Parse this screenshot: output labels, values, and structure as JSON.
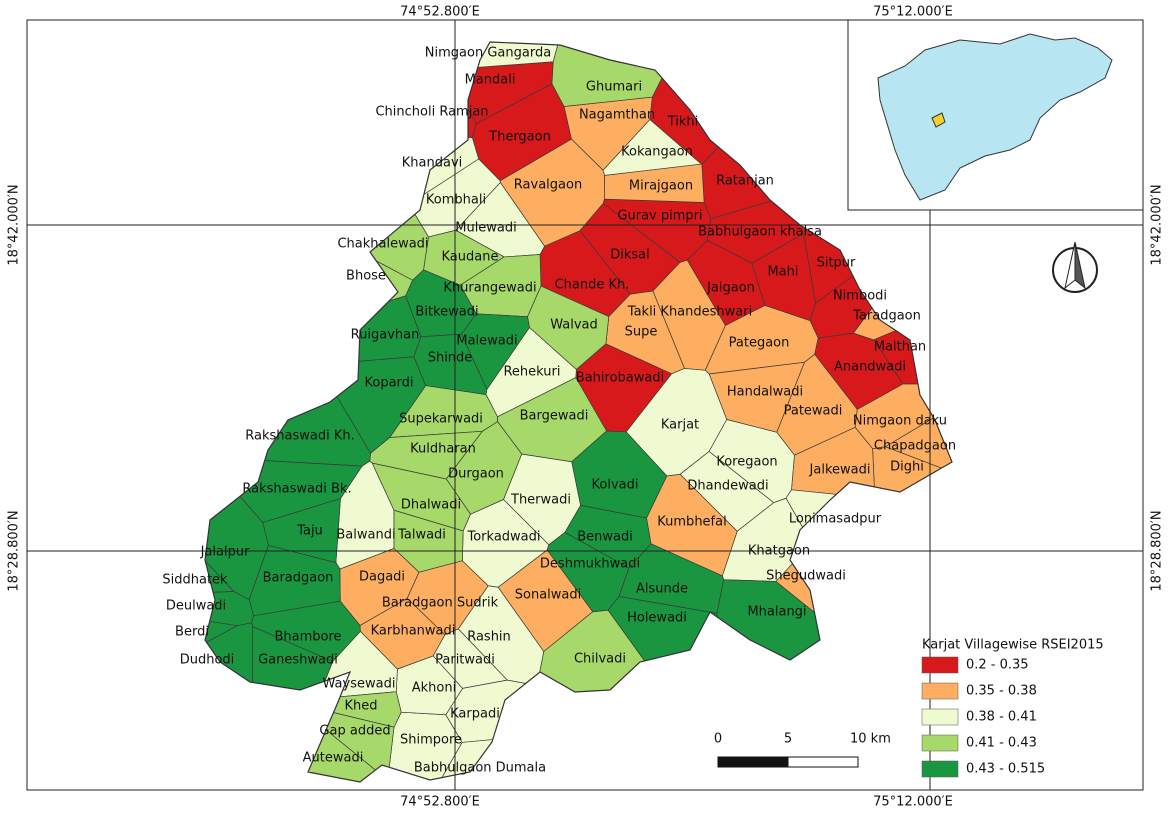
{
  "graticule": {
    "top": [
      "74°52.800′E",
      "75°12.000′E"
    ],
    "bottom": [
      "74°52.800′E",
      "75°12.000′E"
    ],
    "left": [
      "18°42.000′N",
      "18°28.800′N"
    ],
    "right": [
      "18°42.000′N",
      "18°28.800′N"
    ]
  },
  "legend": {
    "title": "Karjat Villagewise RSEI2015",
    "classes": [
      {
        "label": "0.2 - 0.35",
        "color": "#d7191c",
        "villages": [
          "Mandali",
          "Chincholi Ramjan",
          "Thergaon",
          "Tikhi",
          "Ratanjan",
          "Gurav pimpri",
          "Diksal",
          "Babhulgaon khalsa",
          "Chande Kh.",
          "Mahi",
          "Sitpur",
          "Jalgaon",
          "Nimbodi",
          "Malthan",
          "Anandwadi",
          "Bahirobawadi"
        ]
      },
      {
        "label": "0.35 - 0.38",
        "color": "#fdae61",
        "villages": [
          "Nagamthan",
          "Ravalgaon",
          "Mirajgaon",
          "Takli Khandeshwari",
          "Supe",
          "Taradgaon",
          "Pategaon",
          "Handalwadi",
          "Patewadi",
          "Nimgaon daku",
          "Chapadgaon",
          "Dighi",
          "Jalkewadi",
          "Kumbhefal",
          "Shegudwadi",
          "Dagadi",
          "Baradgaon Sudrik",
          "Karbhanwadi",
          "Sonalwadi"
        ]
      },
      {
        "label": "0.38 - 0.41",
        "color": "#effad0",
        "villages": [
          "Nimgaon Gangarda",
          "Khandavi",
          "Kokangaon",
          "Kombhali",
          "Mulewadi",
          "Rehekuri",
          "Karjat",
          "Koregaon",
          "Dhandewadi",
          "Therwadi",
          "Torkadwadi",
          "Lonimasadpur",
          "Khatgaon",
          "Rashin",
          "Paritwadi",
          "Karpadi",
          "Shimpore",
          "Akhoni",
          "Babhulgaon Dumala",
          "Waysewadi",
          "Balwandi"
        ]
      },
      {
        "label": "0.41 - 0.43",
        "color": "#a6d96a",
        "villages": [
          "Ghumari",
          "Chakhalewadi",
          "Kaudane",
          "Khurangewadi",
          "Walvad",
          "Supekarwadi",
          "Kuldharan",
          "Bargewadi",
          "Durgaon",
          "Dhalwadi",
          "Talwadi",
          "Chilvadi",
          "Khed",
          "Gap added",
          "Autewadi",
          "Bhose"
        ]
      },
      {
        "label": "0.43 - 0.515",
        "color": "#1a9641",
        "villages": [
          "Ruigavhan",
          "Bitkewadi",
          "Malewadi",
          "Shinde",
          "Kopardi",
          "Rakshaswadi Kh.",
          "Rakshaswadi Bk.",
          "Taju",
          "Jalalpur",
          "Siddhatek",
          "Baradgaon",
          "Deulwadi",
          "Berdi",
          "Bhambore",
          "Dudhodi",
          "Ganeshwadi",
          "Kolvadi",
          "Benwadi",
          "Deshmukhwadi",
          "Alsunde",
          "Holewadi",
          "Mhalangi"
        ]
      }
    ]
  },
  "scale_bar": {
    "labels": [
      "0",
      "5",
      "10 km"
    ]
  }
}
